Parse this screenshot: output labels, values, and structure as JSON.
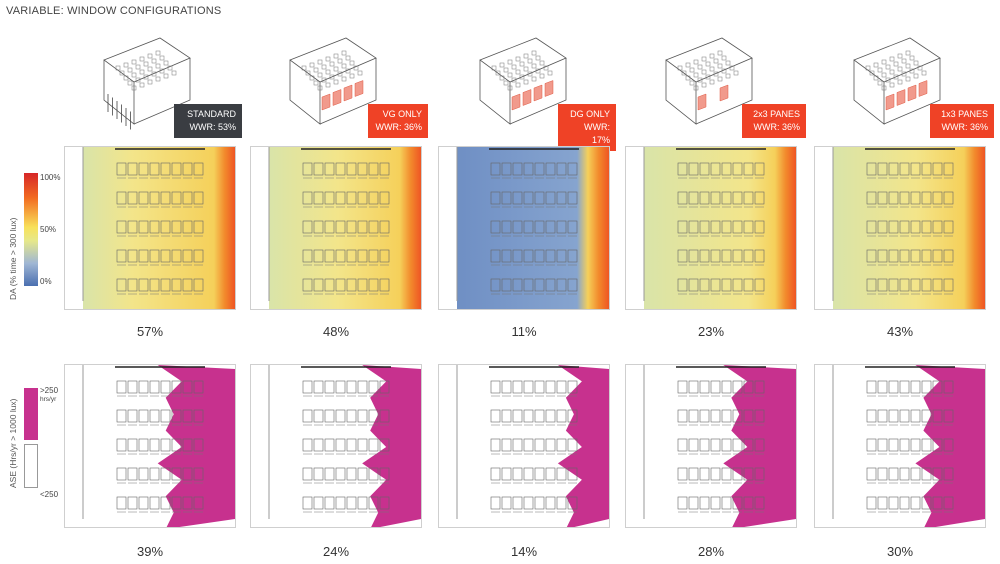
{
  "title": "VARIABLE: WINDOW CONFIGURATIONS",
  "legend": {
    "da_axis": "DA (% time > 300 lux)",
    "da_high": "100%",
    "da_mid": "50%",
    "da_low": "0%",
    "ase_axis": "ASE (Hrs/yr > 1000 lux)",
    "ase_high": ">250",
    "ase_high_unit": "hrs/yr",
    "ase_low": "<250"
  },
  "colors": {
    "da_high": "#ef4a22",
    "da_mid": "#f6e27a",
    "da_low": "#6f8fc4",
    "ase": "#c7318e",
    "label_dark": "#3a3d42",
    "label_red": "#ef4226"
  },
  "configs": [
    {
      "name": "STANDARD",
      "wwr": "WWR: 53%",
      "style": "dark",
      "da": "57%",
      "ase": "39%"
    },
    {
      "name": "VG ONLY",
      "wwr": "WWR: 36%",
      "style": "red",
      "da": "48%",
      "ase": "24%"
    },
    {
      "name": "DG ONLY",
      "wwr": "WWR: 17%",
      "style": "red",
      "da": "11%",
      "ase": "14%"
    },
    {
      "name": "2x3 PANES",
      "wwr": "WWR: 36%",
      "style": "red",
      "da": "23%",
      "ase": "28%"
    },
    {
      "name": "1x3 PANES",
      "wwr": "WWR: 36%",
      "style": "red",
      "da": "43%",
      "ase": "30%"
    }
  ]
}
